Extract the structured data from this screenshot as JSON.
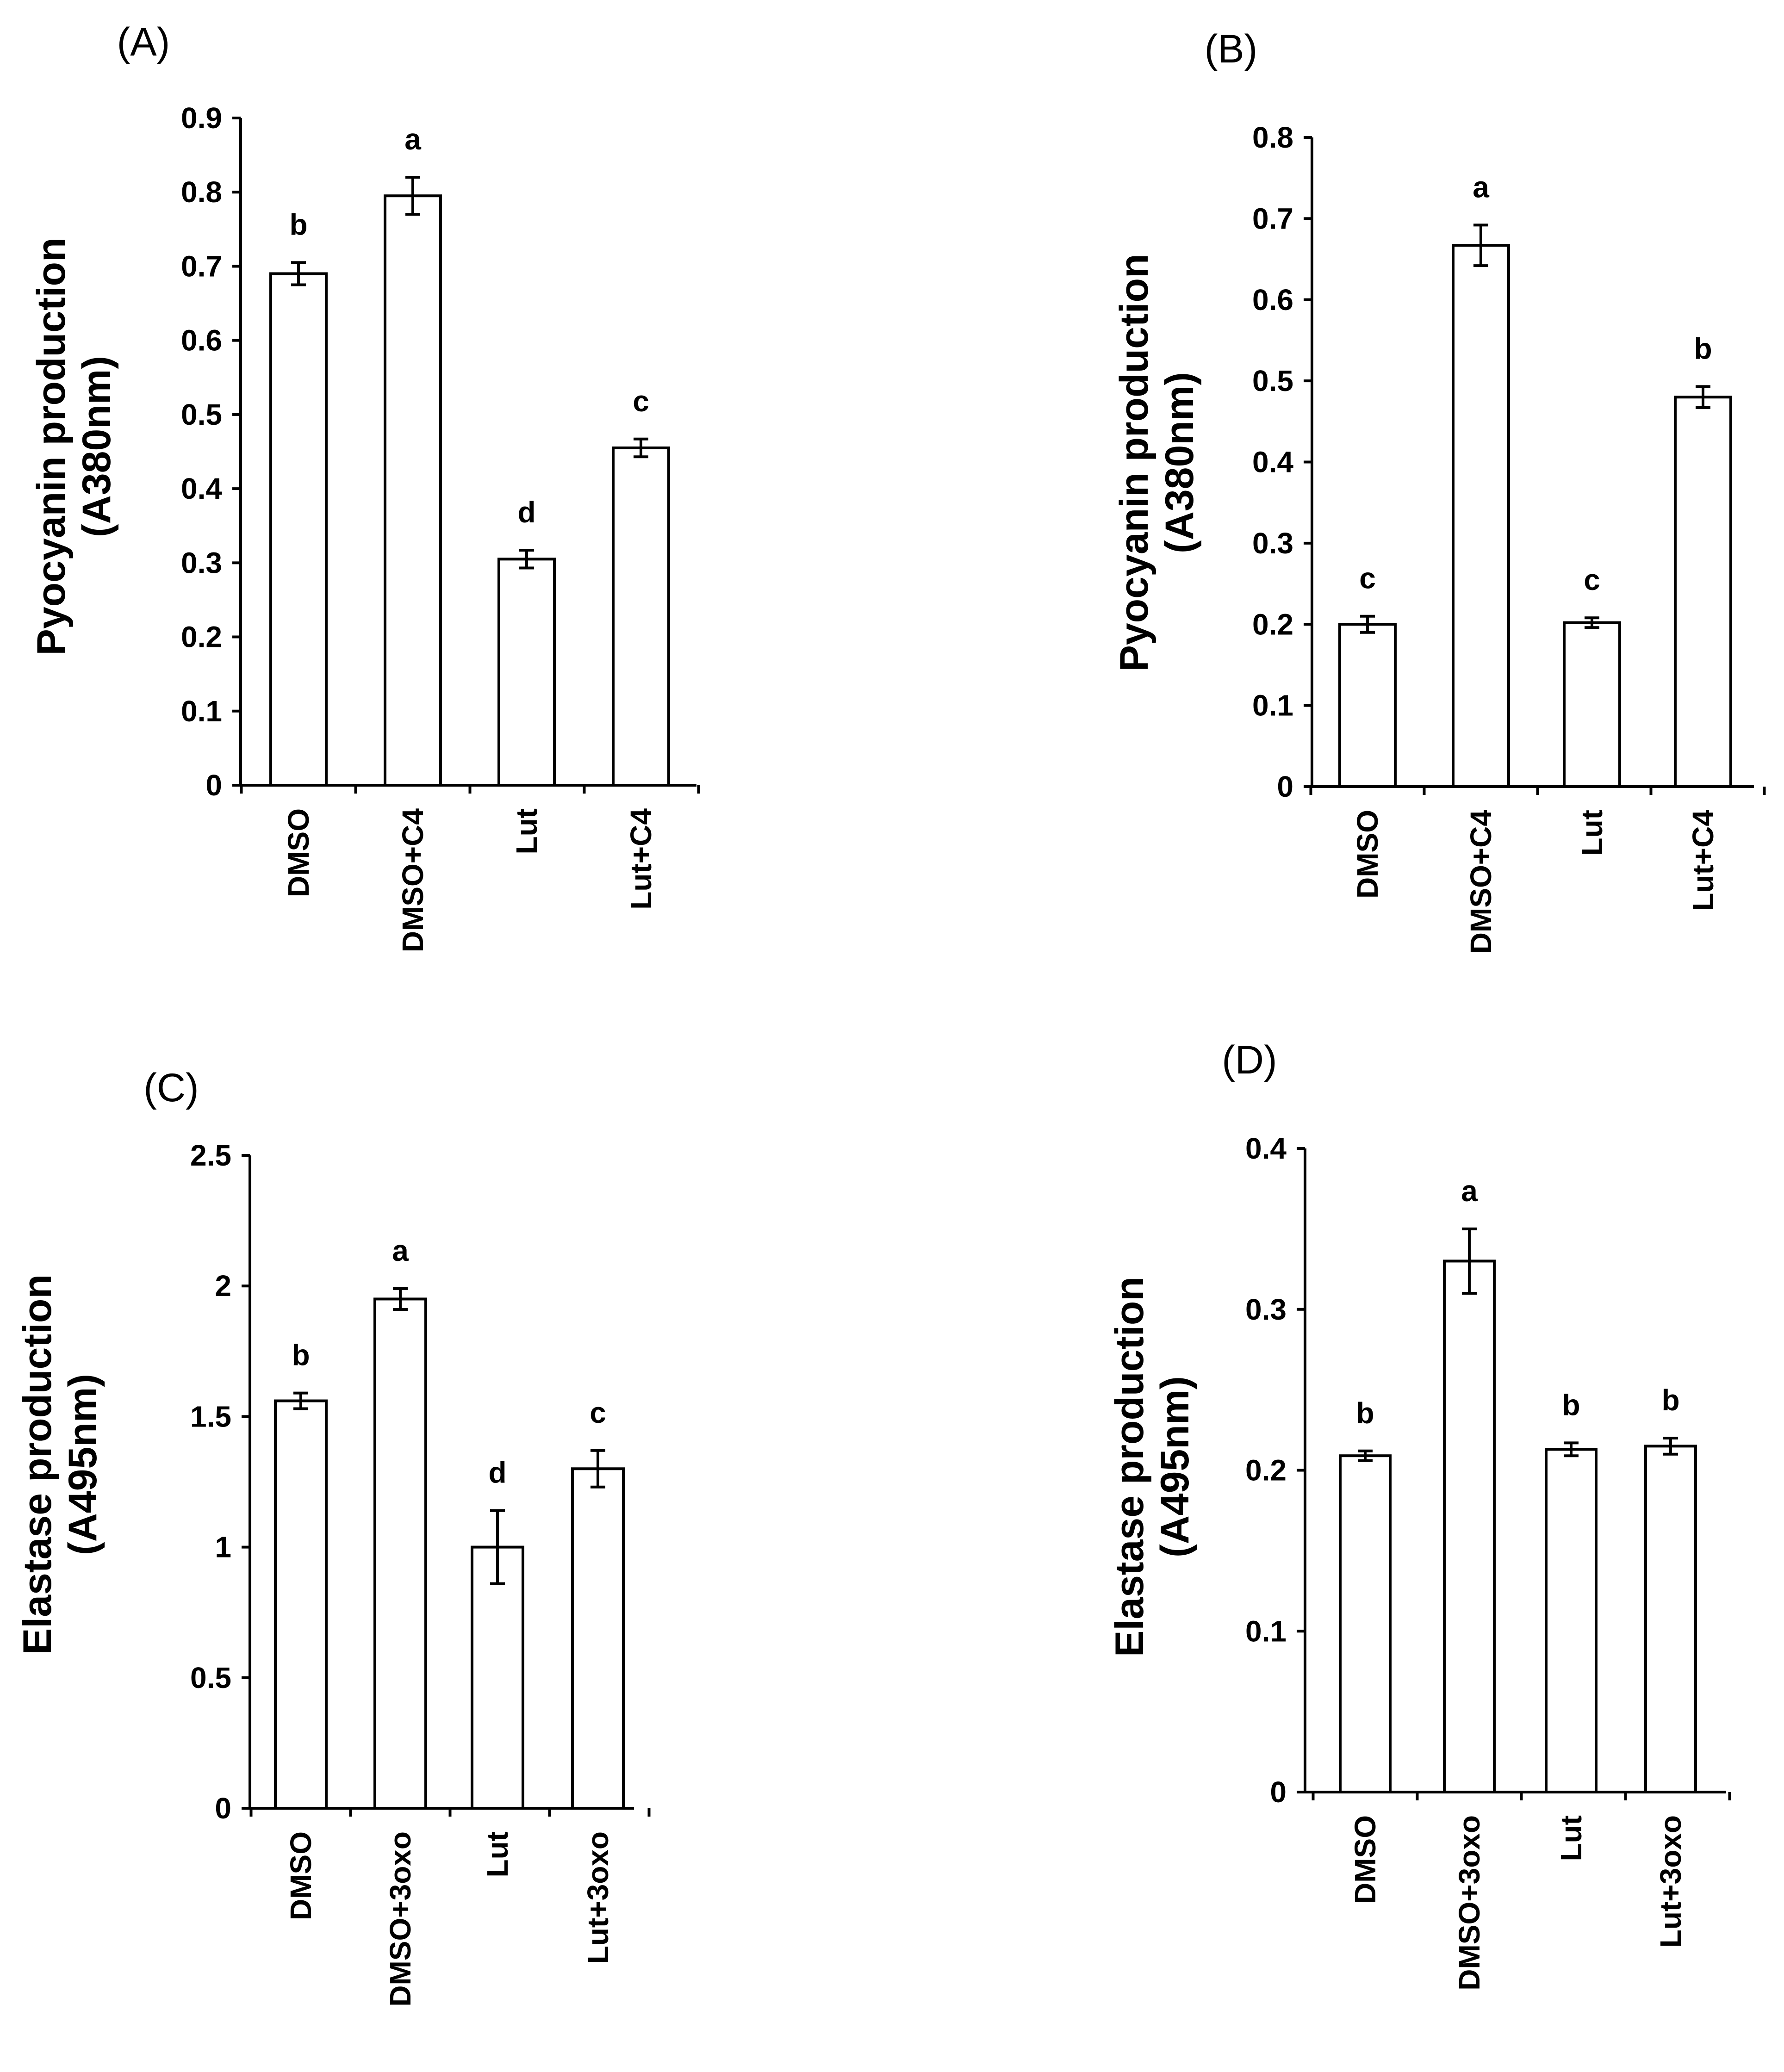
{
  "chart_data": [
    {
      "type": "bar",
      "panel": "(A)",
      "ylabel": [
        "Pyocyanin production",
        "(A380nm)"
      ],
      "categories": [
        "DMSO",
        "DMSO+C4",
        "Lut",
        "Lut+C4"
      ],
      "values": [
        0.69,
        0.795,
        0.305,
        0.455
      ],
      "errors": [
        0.015,
        0.025,
        0.012,
        0.012
      ],
      "significance": [
        "b",
        "a",
        "d",
        "c"
      ],
      "ylim": [
        0,
        0.9
      ],
      "ticks": [
        0,
        0.1,
        0.2,
        0.3,
        0.4,
        0.5,
        0.6,
        0.7,
        0.8,
        0.9
      ],
      "tick_labels": [
        "0",
        "0.1",
        "0.2",
        "0.3",
        "0.4",
        "0.5",
        "0.6",
        "0.7",
        "0.8",
        "0.9"
      ]
    },
    {
      "type": "bar",
      "panel": "(B)",
      "ylabel": [
        "Pyocyanin production",
        "(A380nm)"
      ],
      "categories": [
        "DMSO",
        "DMSO+C4",
        "Lut",
        "Lut+C4"
      ],
      "values": [
        0.2,
        0.667,
        0.202,
        0.48
      ],
      "errors": [
        0.01,
        0.025,
        0.006,
        0.013
      ],
      "significance": [
        "c",
        "a",
        "c",
        "b"
      ],
      "ylim": [
        0,
        0.8
      ],
      "ticks": [
        0,
        0.1,
        0.2,
        0.3,
        0.4,
        0.5,
        0.6,
        0.7,
        0.8
      ],
      "tick_labels": [
        "0",
        "0.1",
        "0.2",
        "0.3",
        "0.4",
        "0.5",
        "0.6",
        "0.7",
        "0.8"
      ]
    },
    {
      "type": "bar",
      "panel": "(C)",
      "ylabel": [
        "Elastase production",
        "(A495nm)"
      ],
      "categories": [
        "DMSO",
        "DMSO+3oxo",
        "Lut",
        "Lut+3oxo"
      ],
      "values": [
        1.56,
        1.95,
        1.0,
        1.3
      ],
      "errors": [
        0.03,
        0.04,
        0.14,
        0.07
      ],
      "significance": [
        "b",
        "a",
        "d",
        "c"
      ],
      "ylim": [
        0,
        2.5
      ],
      "ticks": [
        0,
        0.5,
        1,
        1.5,
        2,
        2.5
      ],
      "tick_labels": [
        "0",
        "0.5",
        "1",
        "1.5",
        "2",
        "2.5"
      ]
    },
    {
      "type": "bar",
      "panel": "(D)",
      "ylabel": [
        "Elastase production",
        "(A495nm)"
      ],
      "categories": [
        "DMSO",
        "DMSO+3oxo",
        "Lut",
        "Lut+3oxo"
      ],
      "values": [
        0.209,
        0.33,
        0.213,
        0.215
      ],
      "errors": [
        0.003,
        0.02,
        0.004,
        0.005
      ],
      "significance": [
        "b",
        "a",
        "b",
        "b"
      ],
      "ylim": [
        0,
        0.4
      ],
      "ticks": [
        0,
        0.1,
        0.2,
        0.3,
        0.4
      ],
      "tick_labels": [
        "0",
        "0.1",
        "0.2",
        "0.3",
        "0.4"
      ]
    }
  ]
}
